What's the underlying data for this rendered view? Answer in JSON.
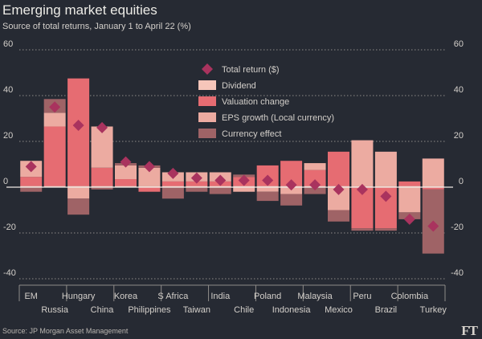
{
  "chart_data": {
    "type": "bar",
    "title": "Emerging market equities",
    "subtitle": "Source of total returns, January 1 to April 22 (%)",
    "source": "Source: JP Morgan Asset Management",
    "logo": "FT",
    "ylim": [
      -40,
      60
    ],
    "yticks": [
      -40,
      -20,
      0,
      20,
      40,
      60
    ],
    "ytick_labels": [
      "-40",
      "-20",
      "0",
      "20",
      "40",
      "60"
    ],
    "grid": true,
    "legend_position": "top-center",
    "categories": [
      "EM",
      "Russia",
      "Hungary",
      "China",
      "Korea",
      "Philippines",
      "S Africa",
      "Taiwan",
      "India",
      "Chile",
      "Poland",
      "Indonesia",
      "Malaysia",
      "Mexico",
      "Peru",
      "Brazil",
      "Colombia",
      "Turkey"
    ],
    "series": [
      {
        "name": "Total return ($)",
        "type": "marker",
        "values": [
          9,
          35,
          27,
          26,
          11,
          9,
          6,
          4,
          3,
          3,
          3,
          1,
          1,
          -1,
          -1,
          -4,
          -14,
          -17
        ]
      },
      {
        "name": "Dividend",
        "values": [
          0.5,
          0.5,
          0.5,
          0.5,
          0.5,
          0.5,
          0.5,
          0.5,
          0.5,
          0.5,
          0.5,
          0.5,
          0.5,
          0.5,
          0.5,
          0.5,
          0.5,
          0.5
        ]
      },
      {
        "name": "Valuation change",
        "values": [
          4,
          26,
          47,
          8,
          3,
          -2,
          2,
          2,
          2,
          4,
          9,
          11,
          7,
          15,
          -18,
          -18,
          2,
          -1
        ]
      },
      {
        "name": "EPS growth (Local currency)",
        "values": [
          7,
          6,
          -5,
          18,
          6,
          8,
          4,
          4,
          4,
          -2,
          -2,
          -3,
          3,
          -10,
          20,
          15,
          -11,
          12
        ]
      },
      {
        "name": "Currency effect",
        "values": [
          -2,
          6,
          -7,
          -1,
          1,
          1,
          -5,
          -2,
          -3,
          1,
          -4,
          -5,
          -3,
          -5,
          -1,
          -1,
          -3,
          -28
        ]
      }
    ],
    "colors": {
      "total_return": "#a9335e",
      "dividend": "#f6c6ba",
      "valuation_change": "#e66c72",
      "eps_growth": "#ecaba1",
      "currency_effect": "#9f6366",
      "grid": "#8f8c89",
      "zero_line": "#f0ebe6",
      "text": "#d3cfca"
    }
  }
}
